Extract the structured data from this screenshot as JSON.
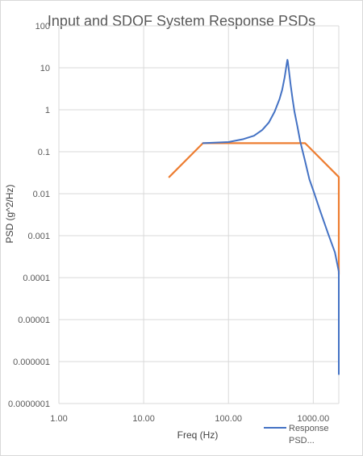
{
  "chart_data": {
    "type": "line",
    "title": "Input and SDOF System Response PSDs",
    "xlabel": "Freq (Hz)",
    "ylabel": "PSD (g^2/Hz)",
    "x_scale": "log",
    "y_scale": "log",
    "xlim": [
      1,
      2000
    ],
    "ylim": [
      1e-07,
      100
    ],
    "x_ticks": [
      1,
      10,
      100,
      1000
    ],
    "x_tick_labels": [
      "1.00",
      "10.00",
      "100.00",
      "1000.00"
    ],
    "y_ticks": [
      100,
      10,
      1,
      0.1,
      0.01,
      0.001,
      0.0001,
      1e-05,
      1e-06,
      1e-07
    ],
    "y_tick_labels": [
      "100",
      "10",
      "1",
      "0.1",
      "0.01",
      "0.001",
      "0.0001",
      "0.00001",
      "0.000001",
      "0.0000001"
    ],
    "grid": true,
    "legend_position": "bottom-right",
    "legend_entries": [
      "Response PSD..."
    ],
    "series": [
      {
        "name": "Response PSD...",
        "color": "#4472c4",
        "points": [
          [
            50,
            0.16
          ],
          [
            100,
            0.17
          ],
          [
            150,
            0.2
          ],
          [
            200,
            0.24
          ],
          [
            250,
            0.33
          ],
          [
            300,
            0.5
          ],
          [
            350,
            0.9
          ],
          [
            400,
            1.8
          ],
          [
            430,
            3.0
          ],
          [
            460,
            6.0
          ],
          [
            485,
            12.0
          ],
          [
            495,
            15.5
          ],
          [
            500,
            14.5
          ],
          [
            515,
            9.0
          ],
          [
            540,
            4.0
          ],
          [
            570,
            1.8
          ],
          [
            600,
            0.9
          ],
          [
            650,
            0.4
          ],
          [
            700,
            0.18
          ],
          [
            800,
            0.06
          ],
          [
            900,
            0.022
          ],
          [
            1000,
            0.012
          ],
          [
            1200,
            0.004
          ],
          [
            1500,
            0.0011
          ],
          [
            1800,
            0.0004
          ],
          [
            2000,
            0.00014
          ],
          [
            2000,
            5e-07
          ]
        ]
      },
      {
        "name": "",
        "color": "#ed7d31",
        "points": [
          [
            20,
            0.025
          ],
          [
            50,
            0.16
          ],
          [
            800,
            0.16
          ],
          [
            2000,
            0.025
          ],
          [
            2000,
            0.00012
          ]
        ]
      }
    ]
  }
}
